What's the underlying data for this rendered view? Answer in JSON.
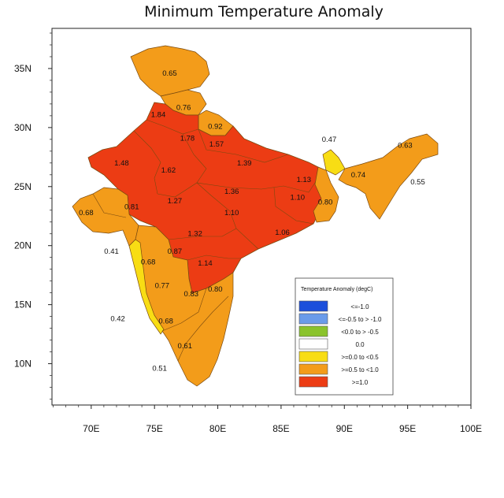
{
  "title": "Minimum Temperature Anomaly",
  "axes": {
    "x_ticks": [
      "70E",
      "75E",
      "80E",
      "85E",
      "90E",
      "95E",
      "100E"
    ],
    "y_ticks": [
      "35N",
      "30N",
      "25N",
      "20N",
      "15N",
      "10N"
    ],
    "x_range_deg_e": [
      66.9,
      100
    ],
    "y_range_deg_n": [
      6.5,
      38.4
    ]
  },
  "legend": {
    "title": "Temperature Anomaly (degC)",
    "placement": "bottom-right",
    "items": [
      {
        "label": "<=-1.0",
        "color": "#1c4fdb"
      },
      {
        "label": "<=-0.5 to > -1.0",
        "color": "#6a9bea"
      },
      {
        "label": "<0.0 to > -0.5",
        "color": "#8ac32c"
      },
      {
        "label": "0.0",
        "color": "#ffffff"
      },
      {
        "label": ">=0.0 to <0.5",
        "color": "#f8dd14"
      },
      {
        "label": ">=0.5 to <1.0",
        "color": "#f39c1a"
      },
      {
        "label": ">=1.0",
        "color": "#ec3c14"
      }
    ]
  },
  "colors": {
    "hot": "#ec3c14",
    "warm": "#f39c1a",
    "mild": "#f8dd14",
    "border": "#7a4a10"
  },
  "regions": [
    {
      "value": "0.65",
      "lon": 76.2,
      "lat": 34.6
    },
    {
      "value": "0.76",
      "lon": 77.3,
      "lat": 31.7
    },
    {
      "value": "1.84",
      "lon": 75.3,
      "lat": 31.1
    },
    {
      "value": "0.92",
      "lon": 79.8,
      "lat": 30.1
    },
    {
      "value": "1.78",
      "lon": 77.6,
      "lat": 29.1
    },
    {
      "value": "1.57",
      "lon": 79.9,
      "lat": 28.6
    },
    {
      "value": "1.48",
      "lon": 72.4,
      "lat": 27.0
    },
    {
      "value": "1.62",
      "lon": 76.1,
      "lat": 26.4
    },
    {
      "value": "1.39",
      "lon": 82.1,
      "lat": 27.0
    },
    {
      "value": "1.13",
      "lon": 86.8,
      "lat": 25.6
    },
    {
      "value": "1.36",
      "lon": 81.1,
      "lat": 24.6
    },
    {
      "value": "1.27",
      "lon": 76.6,
      "lat": 23.8
    },
    {
      "value": "1.10",
      "lon": 86.3,
      "lat": 24.1
    },
    {
      "value": "0.80",
      "lon": 88.5,
      "lat": 23.7
    },
    {
      "value": "0.68",
      "lon": 69.6,
      "lat": 22.8
    },
    {
      "value": "0.81",
      "lon": 73.2,
      "lat": 23.3
    },
    {
      "value": "1.10",
      "lon": 81.1,
      "lat": 22.8
    },
    {
      "value": "1.32",
      "lon": 78.2,
      "lat": 21.0
    },
    {
      "value": "1.06",
      "lon": 85.1,
      "lat": 21.1
    },
    {
      "value": "0.41",
      "lon": 71.6,
      "lat": 19.5
    },
    {
      "value": "0.87",
      "lon": 76.6,
      "lat": 19.5
    },
    {
      "value": "0.68",
      "lon": 74.5,
      "lat": 18.6
    },
    {
      "value": "1.14",
      "lon": 79.0,
      "lat": 18.5
    },
    {
      "value": "0.77",
      "lon": 75.6,
      "lat": 16.6
    },
    {
      "value": "0.83",
      "lon": 77.9,
      "lat": 15.9
    },
    {
      "value": "0.80",
      "lon": 79.8,
      "lat": 16.3
    },
    {
      "value": "0.42",
      "lon": 72.1,
      "lat": 13.8
    },
    {
      "value": "0.68",
      "lon": 75.9,
      "lat": 13.6
    },
    {
      "value": "0.61",
      "lon": 77.4,
      "lat": 11.5
    },
    {
      "value": "0.51",
      "lon": 75.4,
      "lat": 9.6
    },
    {
      "value": "0.47",
      "lon": 88.8,
      "lat": 29.0
    },
    {
      "value": "0.63",
      "lon": 94.8,
      "lat": 28.5
    },
    {
      "value": "0.74",
      "lon": 91.1,
      "lat": 26.0
    },
    {
      "value": "0.55",
      "lon": 95.8,
      "lat": 25.4
    }
  ]
}
